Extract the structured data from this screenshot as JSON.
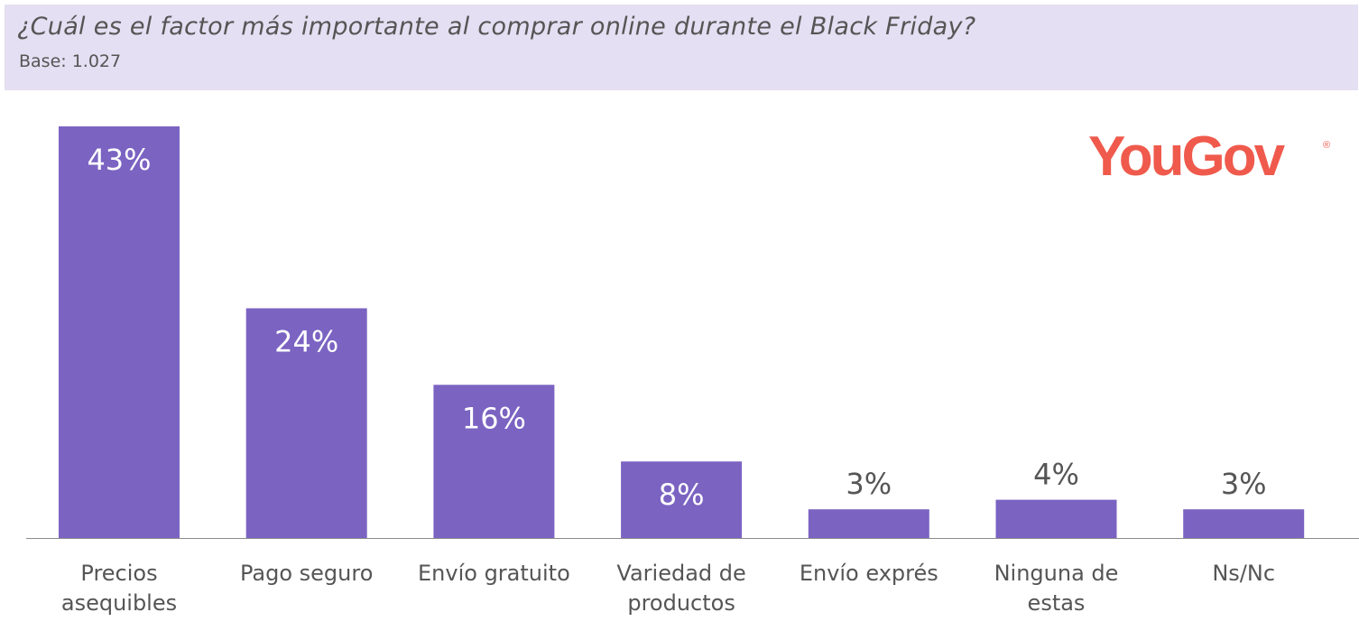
{
  "header": {
    "title": "¿Cuál es el factor más importante al comprar online durante el Black Friday?",
    "subtitle": "Base: 1.027"
  },
  "logo": {
    "text": "YouGov",
    "registered": "®"
  },
  "colors": {
    "bar": "#7b63c2",
    "header_bg": "#e4dff2",
    "logo": "#ef5a4c",
    "label_inside": "#ffffff",
    "label_outside": "#555555",
    "axis": "#8c8c8c"
  },
  "chart_data": {
    "type": "bar",
    "title": "¿Cuál es el factor más importante al comprar online durante el Black Friday?",
    "subtitle": "Base: 1.027",
    "categories": [
      [
        "Precios",
        "asequibles"
      ],
      [
        "Pago seguro"
      ],
      [
        "Envío gratuito"
      ],
      [
        "Variedad de",
        "productos"
      ],
      [
        "Envío exprés"
      ],
      [
        "Ninguna de",
        "estas"
      ],
      [
        "Ns/Nc"
      ]
    ],
    "values": [
      43,
      24,
      16,
      8,
      3,
      4,
      3
    ],
    "data_labels": [
      "43%",
      "24%",
      "16%",
      "8%",
      "3%",
      "4%",
      "3%"
    ],
    "unit": "%",
    "ylim": [
      0,
      43
    ],
    "grid": false,
    "legend": false
  }
}
